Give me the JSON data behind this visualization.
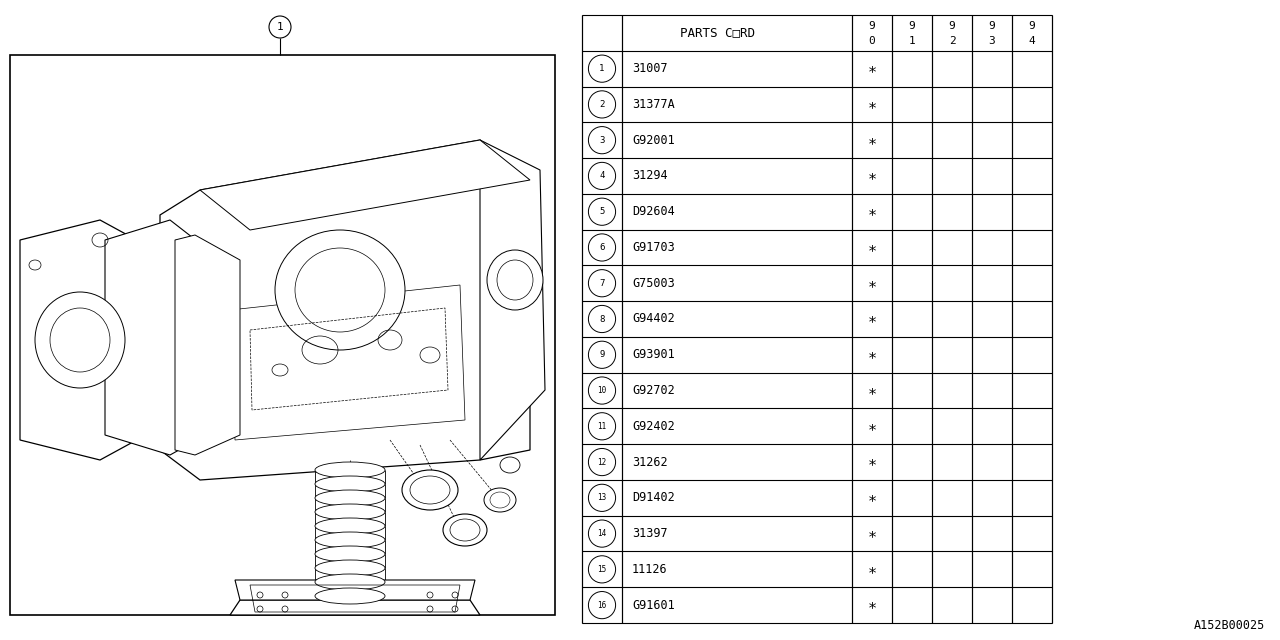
{
  "ref_code": "A152B00025",
  "parts": [
    {
      "num": 1,
      "code": "31007"
    },
    {
      "num": 2,
      "code": "31377A"
    },
    {
      "num": 3,
      "code": "G92001"
    },
    {
      "num": 4,
      "code": "31294"
    },
    {
      "num": 5,
      "code": "D92604"
    },
    {
      "num": 6,
      "code": "G91703"
    },
    {
      "num": 7,
      "code": "G75003"
    },
    {
      "num": 8,
      "code": "G94402"
    },
    {
      "num": 9,
      "code": "G93901"
    },
    {
      "num": 10,
      "code": "G92702"
    },
    {
      "num": 11,
      "code": "G92402"
    },
    {
      "num": 12,
      "code": "31262"
    },
    {
      "num": 13,
      "code": "D91402"
    },
    {
      "num": 14,
      "code": "31397"
    },
    {
      "num": 15,
      "code": "11126"
    },
    {
      "num": 16,
      "code": "G91601"
    }
  ],
  "bg_color": "#ffffff",
  "header_label": "PARTS C□RD",
  "year_cols": [
    [
      "9",
      "0"
    ],
    [
      "9",
      "1"
    ],
    [
      "9",
      "2"
    ],
    [
      "9",
      "3"
    ],
    [
      "9",
      "4"
    ]
  ],
  "asterisk": "∗"
}
